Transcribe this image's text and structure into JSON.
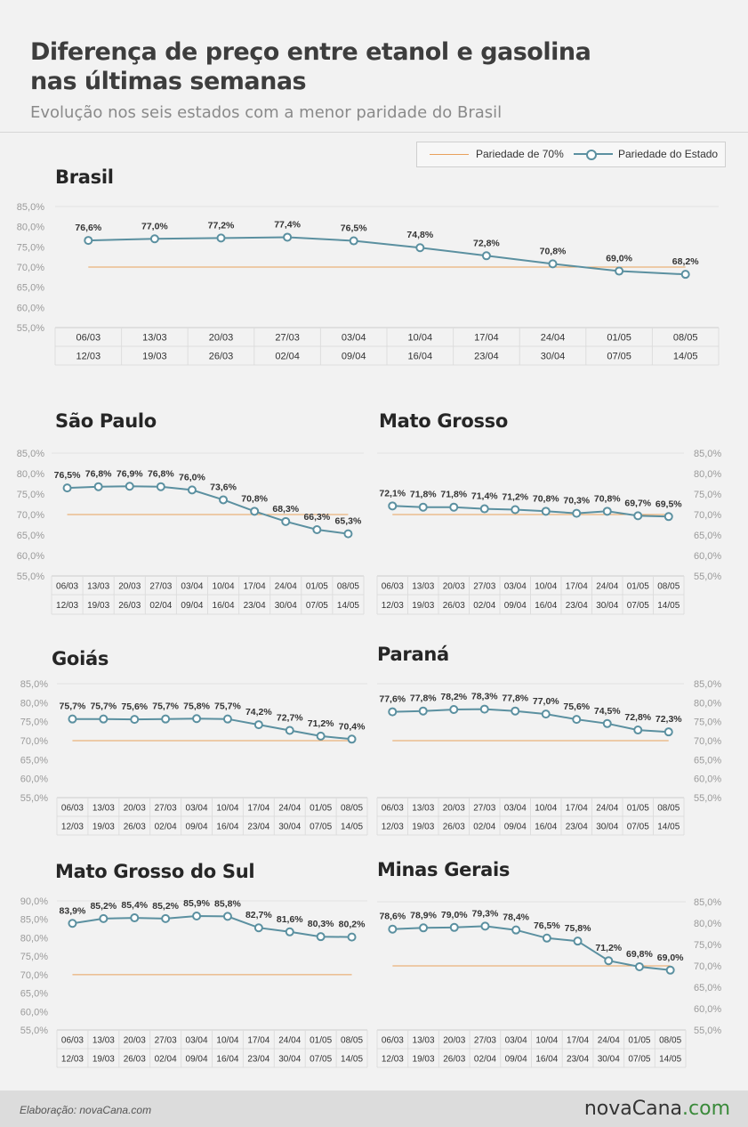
{
  "header": {
    "title_line1": "Diferença de preço entre etanol e gasolina",
    "title_line2": "nas últimas semanas",
    "subtitle": "Evolução nos seis estados com a menor paridade do Brasil"
  },
  "legend": {
    "parity70": "Pariedade de 70%",
    "state": "Pariedade do Estado"
  },
  "colors": {
    "state_line": "#5b90a0",
    "parity_line": "#e8a15c",
    "label_text": "#333333",
    "axis_text": "#9a9a9a"
  },
  "footer": {
    "credit": "Elaboração: novaCana.com",
    "logo_main": "novaCana",
    "logo_accent": ".com"
  },
  "chart_data": [
    {
      "type": "line",
      "title": "Brasil",
      "categories": [
        [
          "06/03",
          "12/03"
        ],
        [
          "13/03",
          "19/03"
        ],
        [
          "20/03",
          "26/03"
        ],
        [
          "27/03",
          "02/04"
        ],
        [
          "03/04",
          "09/04"
        ],
        [
          "10/04",
          "16/04"
        ],
        [
          "17/04",
          "23/04"
        ],
        [
          "24/04",
          "30/04"
        ],
        [
          "01/05",
          "07/05"
        ],
        [
          "08/05",
          "14/05"
        ]
      ],
      "series": [
        {
          "name": "Pariedade do Estado",
          "values": [
            76.6,
            77.0,
            77.2,
            77.4,
            76.5,
            74.8,
            72.8,
            70.8,
            69.0,
            68.2
          ]
        },
        {
          "name": "Pariedade de 70%",
          "values": [
            70,
            70,
            70,
            70,
            70,
            70,
            70,
            70,
            70,
            70
          ]
        }
      ],
      "data_labels": [
        "76,6%",
        "77,0%",
        "77,2%",
        "77,4%",
        "76,5%",
        "74,8%",
        "72,8%",
        "70,8%",
        "69,0%",
        "68,2%"
      ],
      "yticks": [
        "85,0%",
        "80,0%",
        "75,0%",
        "70,0%",
        "65,0%",
        "60,0%",
        "55,0%"
      ],
      "ylim": [
        55,
        85
      ],
      "axis_side": "left",
      "grid": false
    },
    {
      "type": "line",
      "title": "São Paulo",
      "categories": [
        [
          "06/03",
          "12/03"
        ],
        [
          "13/03",
          "19/03"
        ],
        [
          "20/03",
          "26/03"
        ],
        [
          "27/03",
          "02/04"
        ],
        [
          "03/04",
          "09/04"
        ],
        [
          "10/04",
          "16/04"
        ],
        [
          "17/04",
          "23/04"
        ],
        [
          "24/04",
          "30/04"
        ],
        [
          "01/05",
          "07/05"
        ],
        [
          "08/05",
          "14/05"
        ]
      ],
      "series": [
        {
          "name": "Pariedade do Estado",
          "values": [
            76.5,
            76.8,
            76.9,
            76.8,
            76.0,
            73.6,
            70.8,
            68.3,
            66.3,
            65.3
          ]
        },
        {
          "name": "Pariedade de 70%",
          "values": [
            70,
            70,
            70,
            70,
            70,
            70,
            70,
            70,
            70,
            70
          ]
        }
      ],
      "data_labels": [
        "76,5%",
        "76,8%",
        "76,9%",
        "76,8%",
        "76,0%",
        "73,6%",
        "70,8%",
        "68,3%",
        "66,3%",
        "65,3%"
      ],
      "yticks": [
        "85,0%",
        "80,0%",
        "75,0%",
        "70,0%",
        "65,0%",
        "60,0%",
        "55,0%"
      ],
      "ylim": [
        55,
        85
      ],
      "axis_side": "left",
      "grid": false
    },
    {
      "type": "line",
      "title": "Mato Grosso",
      "categories": [
        [
          "06/03",
          "12/03"
        ],
        [
          "13/03",
          "19/03"
        ],
        [
          "20/03",
          "26/03"
        ],
        [
          "27/03",
          "02/04"
        ],
        [
          "03/04",
          "09/04"
        ],
        [
          "10/04",
          "16/04"
        ],
        [
          "17/04",
          "23/04"
        ],
        [
          "24/04",
          "30/04"
        ],
        [
          "01/05",
          "07/05"
        ],
        [
          "08/05",
          "14/05"
        ]
      ],
      "series": [
        {
          "name": "Pariedade do Estado",
          "values": [
            72.1,
            71.8,
            71.8,
            71.4,
            71.2,
            70.8,
            70.3,
            70.8,
            69.7,
            69.5
          ]
        },
        {
          "name": "Pariedade de 70%",
          "values": [
            70,
            70,
            70,
            70,
            70,
            70,
            70,
            70,
            70,
            70
          ]
        }
      ],
      "data_labels": [
        "72,1%",
        "71,8%",
        "71,8%",
        "71,4%",
        "71,2%",
        "70,8%",
        "70,3%",
        "70,8%",
        "69,7%",
        "69,5%"
      ],
      "yticks": [
        "85,0%",
        "80,0%",
        "75,0%",
        "70,0%",
        "65,0%",
        "60,0%",
        "55,0%"
      ],
      "ylim": [
        55,
        85
      ],
      "axis_side": "right",
      "grid": false
    },
    {
      "type": "line",
      "title": "Goiás",
      "categories": [
        [
          "06/03",
          "12/03"
        ],
        [
          "13/03",
          "19/03"
        ],
        [
          "20/03",
          "26/03"
        ],
        [
          "27/03",
          "02/04"
        ],
        [
          "03/04",
          "09/04"
        ],
        [
          "10/04",
          "16/04"
        ],
        [
          "17/04",
          "23/04"
        ],
        [
          "24/04",
          "30/04"
        ],
        [
          "01/05",
          "07/05"
        ],
        [
          "08/05",
          "14/05"
        ]
      ],
      "series": [
        {
          "name": "Pariedade do Estado",
          "values": [
            75.7,
            75.7,
            75.6,
            75.7,
            75.8,
            75.7,
            74.2,
            72.7,
            71.2,
            70.4
          ]
        },
        {
          "name": "Pariedade de 70%",
          "values": [
            70,
            70,
            70,
            70,
            70,
            70,
            70,
            70,
            70,
            70
          ]
        }
      ],
      "data_labels": [
        "75,7%",
        "75,7%",
        "75,6%",
        "75,7%",
        "75,8%",
        "75,7%",
        "74,2%",
        "72,7%",
        "71,2%",
        "70,4%"
      ],
      "yticks": [
        "85,0%",
        "80,0%",
        "75,0%",
        "70,0%",
        "65,0%",
        "60,0%",
        "55,0%"
      ],
      "ylim": [
        55,
        85
      ],
      "axis_side": "left",
      "grid": false
    },
    {
      "type": "line",
      "title": "Paraná",
      "categories": [
        [
          "06/03",
          "12/03"
        ],
        [
          "13/03",
          "19/03"
        ],
        [
          "20/03",
          "26/03"
        ],
        [
          "27/03",
          "02/04"
        ],
        [
          "03/04",
          "09/04"
        ],
        [
          "10/04",
          "16/04"
        ],
        [
          "17/04",
          "23/04"
        ],
        [
          "24/04",
          "30/04"
        ],
        [
          "01/05",
          "07/05"
        ],
        [
          "08/05",
          "14/05"
        ]
      ],
      "series": [
        {
          "name": "Pariedade do Estado",
          "values": [
            77.6,
            77.8,
            78.2,
            78.3,
            77.8,
            77.0,
            75.6,
            74.5,
            72.8,
            72.3
          ]
        },
        {
          "name": "Pariedade de 70%",
          "values": [
            70,
            70,
            70,
            70,
            70,
            70,
            70,
            70,
            70,
            70
          ]
        }
      ],
      "data_labels": [
        "77,6%",
        "77,8%",
        "78,2%",
        "78,3%",
        "77,8%",
        "77,0%",
        "75,6%",
        "74,5%",
        "72,8%",
        "72,3%"
      ],
      "yticks": [
        "85,0%",
        "80,0%",
        "75,0%",
        "70,0%",
        "65,0%",
        "60,0%",
        "55,0%"
      ],
      "ylim": [
        55,
        85
      ],
      "axis_side": "right",
      "grid": false
    },
    {
      "type": "line",
      "title": "Mato Grosso do Sul",
      "categories": [
        [
          "06/03",
          "12/03"
        ],
        [
          "13/03",
          "19/03"
        ],
        [
          "20/03",
          "26/03"
        ],
        [
          "27/03",
          "02/04"
        ],
        [
          "03/04",
          "09/04"
        ],
        [
          "10/04",
          "16/04"
        ],
        [
          "17/04",
          "23/04"
        ],
        [
          "24/04",
          "30/04"
        ],
        [
          "01/05",
          "07/05"
        ],
        [
          "08/05",
          "14/05"
        ]
      ],
      "series": [
        {
          "name": "Pariedade do Estado",
          "values": [
            83.9,
            85.2,
            85.4,
            85.2,
            85.9,
            85.8,
            82.7,
            81.6,
            80.3,
            80.2
          ]
        },
        {
          "name": "Pariedade de 70%",
          "values": [
            70,
            70,
            70,
            70,
            70,
            70,
            70,
            70,
            70,
            70
          ]
        }
      ],
      "data_labels": [
        "83,9%",
        "85,2%",
        "85,4%",
        "85,2%",
        "85,9%",
        "85,8%",
        "82,7%",
        "81,6%",
        "80,3%",
        "80,2%"
      ],
      "yticks": [
        "90,0%",
        "85,0%",
        "80,0%",
        "75,0%",
        "70,0%",
        "65,0%",
        "60,0%",
        "55,0%"
      ],
      "ylim": [
        55,
        90
      ],
      "axis_side": "left",
      "grid": false
    },
    {
      "type": "line",
      "title": "Minas Gerais",
      "categories": [
        [
          "06/03",
          "12/03"
        ],
        [
          "13/03",
          "19/03"
        ],
        [
          "20/03",
          "26/03"
        ],
        [
          "27/03",
          "02/04"
        ],
        [
          "03/04",
          "09/04"
        ],
        [
          "10/04",
          "16/04"
        ],
        [
          "17/04",
          "23/04"
        ],
        [
          "24/04",
          "30/04"
        ],
        [
          "01/05",
          "07/05"
        ],
        [
          "08/05",
          "14/05"
        ]
      ],
      "series": [
        {
          "name": "Pariedade do Estado",
          "values": [
            78.6,
            78.9,
            79.0,
            79.3,
            78.4,
            76.5,
            75.8,
            71.2,
            69.8,
            69.0
          ]
        },
        {
          "name": "Pariedade de 70%",
          "values": [
            70,
            70,
            70,
            70,
            70,
            70,
            70,
            70,
            70,
            70
          ]
        }
      ],
      "data_labels": [
        "78,6%",
        "78,9%",
        "79,0%",
        "79,3%",
        "78,4%",
        "76,5%",
        "75,8%",
        "71,2%",
        "69,8%",
        "69,0%"
      ],
      "yticks": [
        "85,0%",
        "80,0%",
        "75,0%",
        "70,0%",
        "65,0%",
        "60,0%",
        "55,0%"
      ],
      "ylim": [
        55,
        85
      ],
      "axis_side": "right",
      "grid": false
    }
  ]
}
